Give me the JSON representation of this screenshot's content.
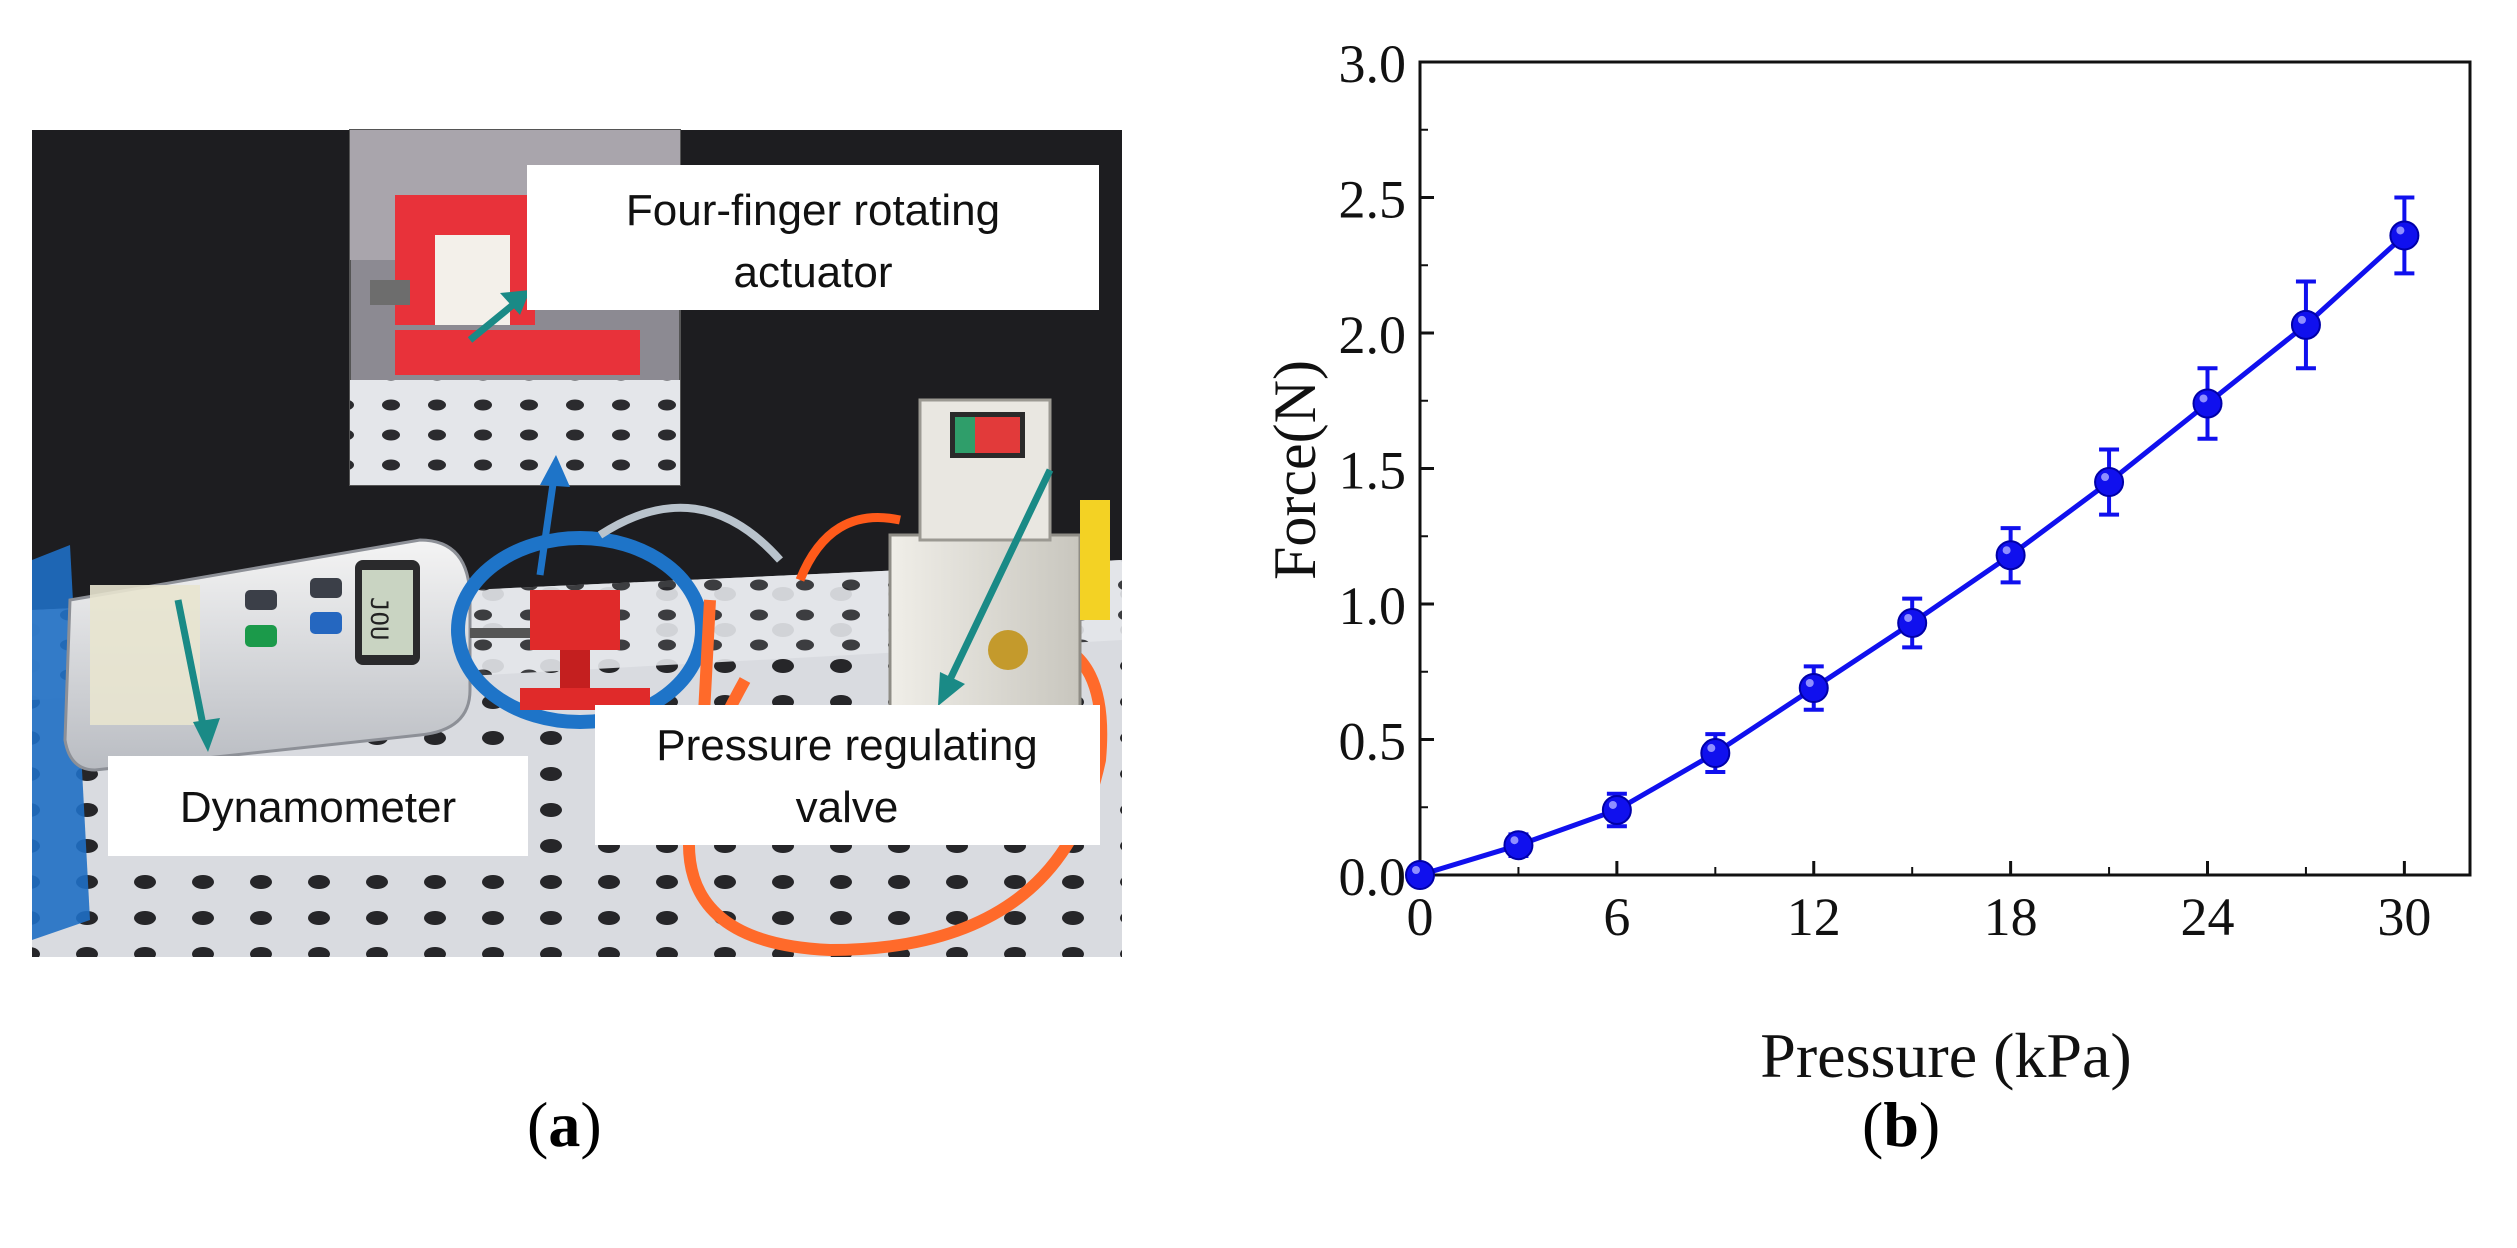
{
  "panel_a": {
    "labels": {
      "actuator_line1": "Four-finger rotating",
      "actuator_line2": "actuator",
      "dynamometer": "Dynamometer",
      "valve_line1": "Pressure regulating",
      "valve_line2": "valve"
    },
    "dynamometer_display": "JOU",
    "caption_letter": "a"
  },
  "panel_b": {
    "caption_letter": "b"
  },
  "colors": {
    "series": "#1010ee",
    "arrow": "#1a8a86",
    "ring": "#1e74c8",
    "tube": "#ff6a2a"
  },
  "chart_data": {
    "type": "line",
    "title": "",
    "xlabel": "Pressure (kPa)",
    "ylabel": "Force(N)",
    "xlim": [
      0,
      32
    ],
    "ylim": [
      0,
      3.0
    ],
    "xticks": [
      0,
      6,
      12,
      18,
      24,
      30
    ],
    "yticks": [
      0.0,
      0.5,
      1.0,
      1.5,
      2.0,
      2.5,
      3.0
    ],
    "ytick_labels": [
      "0.0",
      "0.5",
      "1.0",
      "1.5",
      "2.0",
      "2.5",
      "3.0"
    ],
    "grid": false,
    "legend": "none",
    "series": [
      {
        "x": [
          0,
          3,
          6,
          9,
          12,
          15,
          18,
          21,
          24,
          27,
          30
        ],
        "y": [
          0.0,
          0.11,
          0.24,
          0.45,
          0.69,
          0.93,
          1.18,
          1.45,
          1.74,
          2.03,
          2.36
        ],
        "error": [
          0.0,
          0.04,
          0.06,
          0.07,
          0.08,
          0.09,
          0.1,
          0.12,
          0.13,
          0.16,
          0.14
        ],
        "marker": "circle"
      }
    ]
  }
}
